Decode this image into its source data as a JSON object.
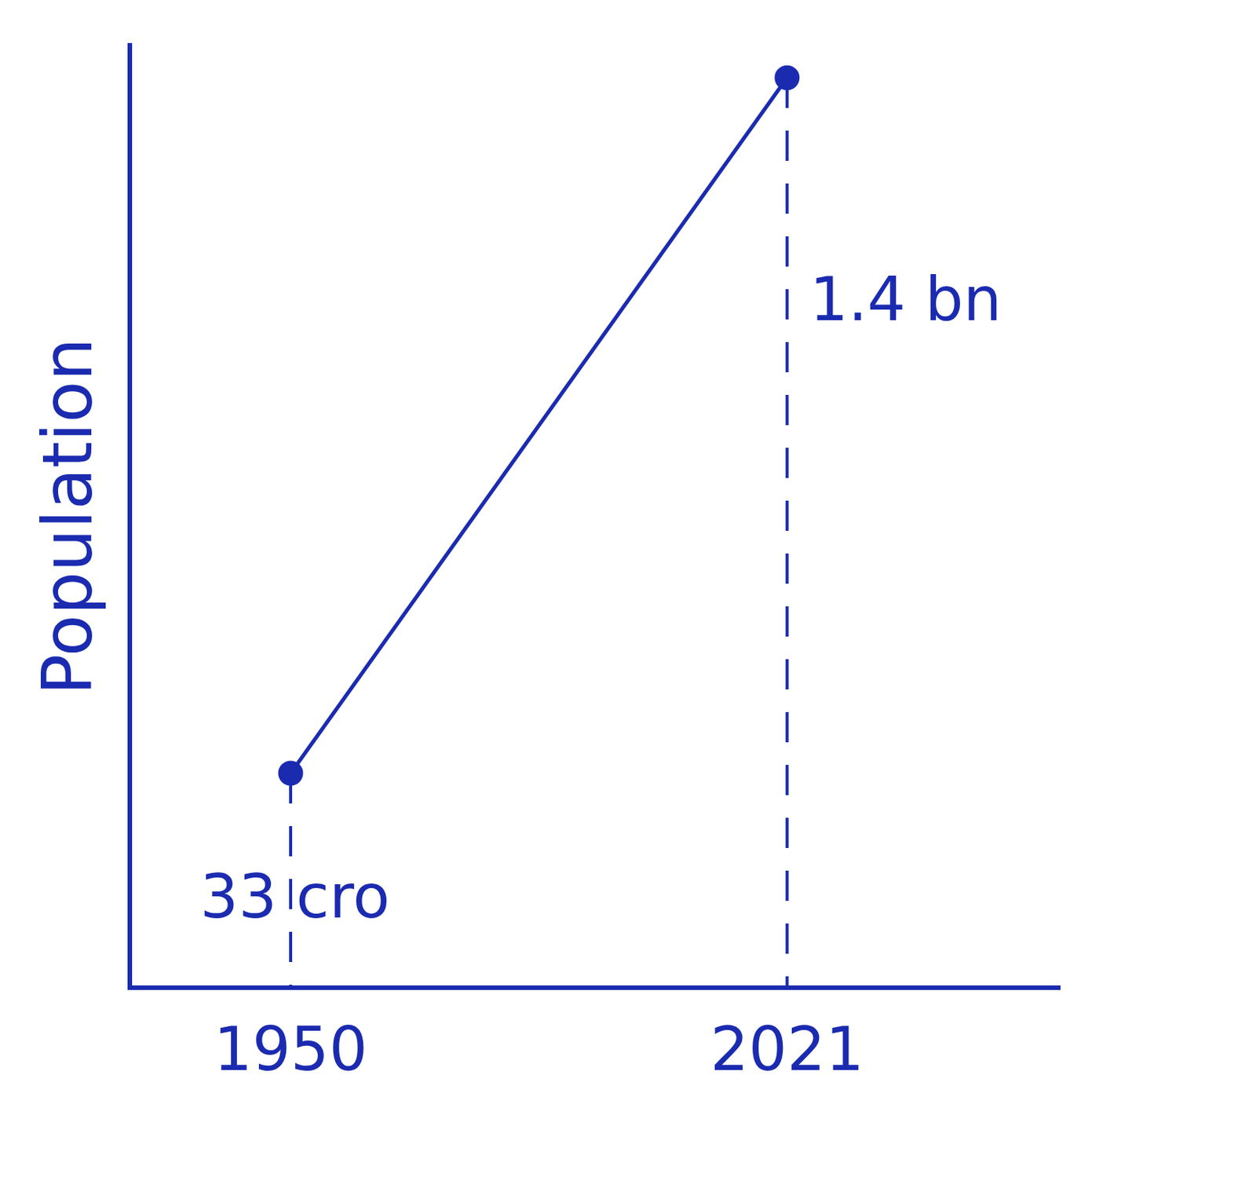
{
  "chart_data": {
    "type": "line",
    "y_label": "Population",
    "x": [
      1950,
      2021
    ],
    "values": [
      330000000,
      1400000000
    ],
    "value_labels": [
      "33 cro",
      "1.4 bn"
    ],
    "data_labels": true,
    "color": "#1b2bb0",
    "marker": "circle",
    "xlim": [
      1927,
      2060
    ],
    "xticks": [
      1950,
      2021
    ],
    "ylim": [
      0,
      1450000000
    ],
    "grid": false,
    "tick_labels": "x"
  }
}
